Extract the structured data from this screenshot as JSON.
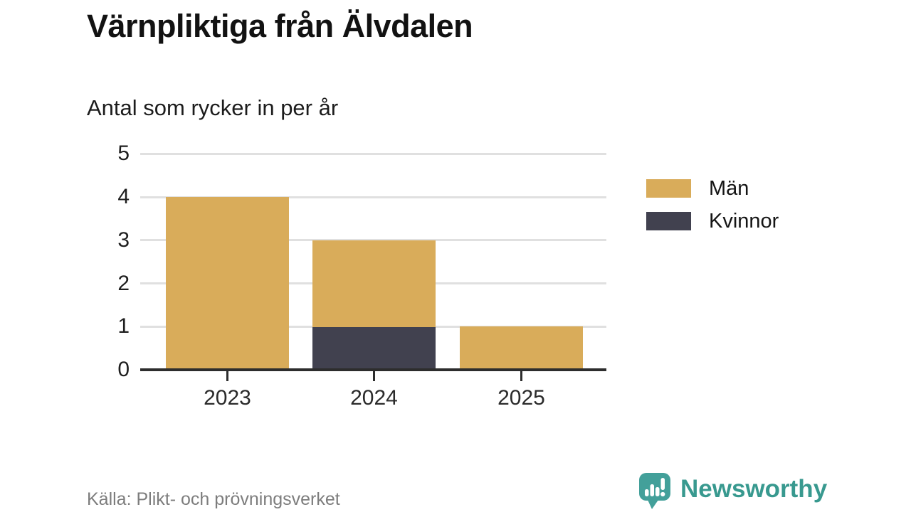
{
  "header": {
    "title": "Värnpliktiga från Älvdalen",
    "subtitle": "Antal som rycker in per år"
  },
  "chart_data": {
    "type": "bar",
    "stacked": true,
    "title": "Värnpliktiga från Älvdalen",
    "subtitle": "Antal som rycker in per år",
    "categories": [
      "2023",
      "2024",
      "2025"
    ],
    "series": [
      {
        "name": "Män",
        "color": "#D9AC5A",
        "values": [
          4,
          2,
          1
        ]
      },
      {
        "name": "Kvinnor",
        "color": "#41414F",
        "values": [
          0,
          1,
          0
        ]
      }
    ],
    "stack_order_bottom_to_top": [
      "Kvinnor",
      "Män"
    ],
    "totals": [
      4,
      3,
      1
    ],
    "xlabel": "",
    "ylabel": "",
    "ylim": [
      0,
      5
    ],
    "yticks": [
      0,
      1,
      2,
      3,
      4,
      5
    ],
    "grid": true,
    "legend_position": "right-top"
  },
  "legend": {
    "items": [
      {
        "label": "Män",
        "color": "#D9AC5A"
      },
      {
        "label": "Kvinnor",
        "color": "#41414F"
      }
    ]
  },
  "footer": {
    "source": "Källa: Plikt- och prövningsverket"
  },
  "brand": {
    "name": "Newsworthy",
    "color": "#38998F",
    "icon": "newsworthy-speech-bubble-chart-icon",
    "icon_color": "#43A09A"
  },
  "colors": {
    "axis": "#2d2d2d",
    "grid": "#e0e0e0",
    "title_text": "#121212",
    "muted_text": "#7d7d7d"
  }
}
